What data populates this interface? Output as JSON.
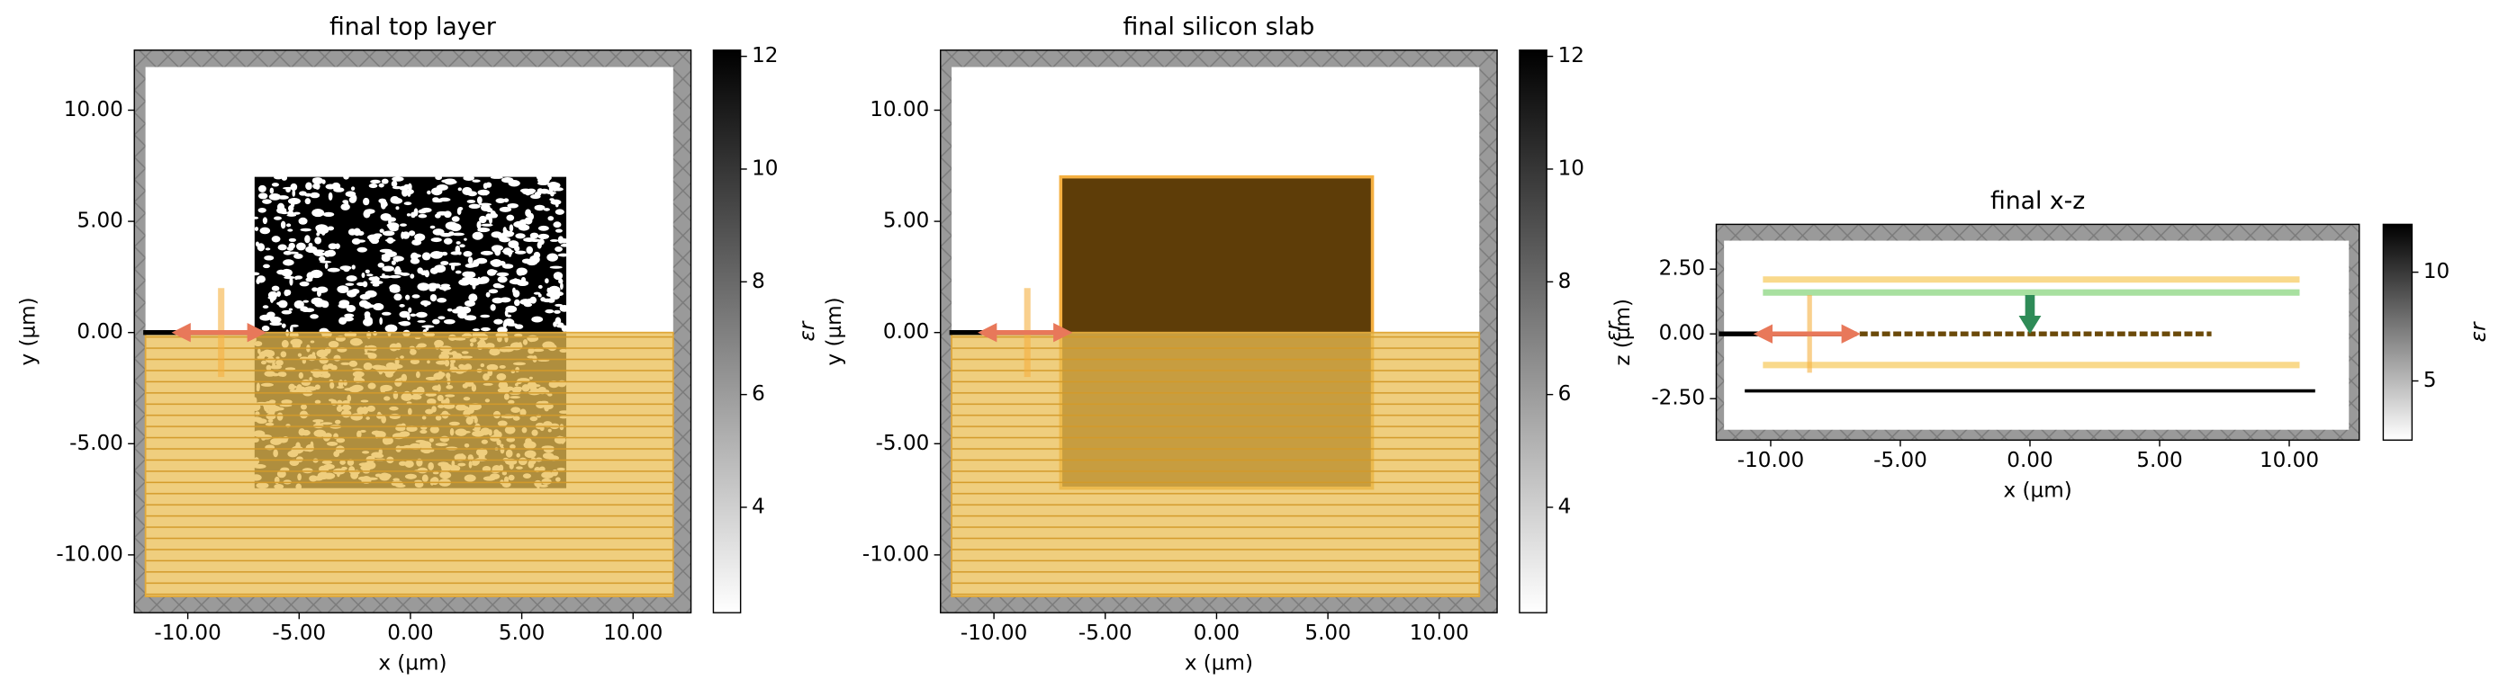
{
  "chart_data": [
    {
      "type": "image",
      "title": "final top layer",
      "xlabel": "x (µm)",
      "ylabel": "y (µm)",
      "xlim": [
        -12.4,
        12.6
      ],
      "ylim": [
        -12.6,
        12.7
      ],
      "xticks": [
        {
          "value": -10,
          "label": "-10.00"
        },
        {
          "value": -5,
          "label": "-5.00"
        },
        {
          "value": 0,
          "label": "0.00"
        },
        {
          "value": 5,
          "label": "5.00"
        },
        {
          "value": 10,
          "label": "10.00"
        }
      ],
      "yticks": [
        {
          "value": -10,
          "label": "-10.00"
        },
        {
          "value": -5,
          "label": "-5.00"
        },
        {
          "value": 0,
          "label": "0.00"
        },
        {
          "value": 5,
          "label": "5.00"
        },
        {
          "value": 10,
          "label": "10.00"
        }
      ],
      "colorbar": {
        "label": "εr",
        "lim": [
          2.13,
          12.11
        ],
        "ticks": [
          4,
          6,
          8,
          10,
          12
        ]
      }
    },
    {
      "type": "image",
      "title": "final silicon slab",
      "xlabel": "x (µm)",
      "ylabel": "y (µm)",
      "xlim": [
        -12.4,
        12.6
      ],
      "ylim": [
        -12.6,
        12.7
      ],
      "xticks": [
        {
          "value": -10,
          "label": "-10.00"
        },
        {
          "value": -5,
          "label": "-5.00"
        },
        {
          "value": 0,
          "label": "0.00"
        },
        {
          "value": 5,
          "label": "5.00"
        },
        {
          "value": 10,
          "label": "10.00"
        }
      ],
      "yticks": [
        {
          "value": -10,
          "label": "-10.00"
        },
        {
          "value": -5,
          "label": "-5.00"
        },
        {
          "value": 0,
          "label": "0.00"
        },
        {
          "value": 5,
          "label": "5.00"
        },
        {
          "value": 10,
          "label": "10.00"
        }
      ],
      "colorbar": {
        "label": "εr",
        "lim": [
          2.13,
          12.11
        ],
        "ticks": [
          4,
          6,
          8,
          10,
          12
        ]
      }
    },
    {
      "type": "image",
      "title": "final x-z",
      "xlabel": "x (µm)",
      "ylabel": "z (µm)",
      "xlim": [
        -12.1,
        12.7
      ],
      "ylim": [
        -4.1,
        4.23
      ],
      "xticks": [
        {
          "value": -10,
          "label": "-10.00"
        },
        {
          "value": -5,
          "label": "-5.00"
        },
        {
          "value": 0,
          "label": "0.00"
        },
        {
          "value": 5,
          "label": "5.00"
        },
        {
          "value": 10,
          "label": "10.00"
        }
      ],
      "yticks": [
        {
          "value": -2.5,
          "label": "-2.50"
        },
        {
          "value": 0,
          "label": "0.00"
        },
        {
          "value": 2.5,
          "label": "2.50"
        }
      ],
      "colorbar": {
        "label": "εr",
        "lim": [
          2.28,
          12.2
        ],
        "ticks": [
          5,
          10
        ]
      }
    }
  ]
}
